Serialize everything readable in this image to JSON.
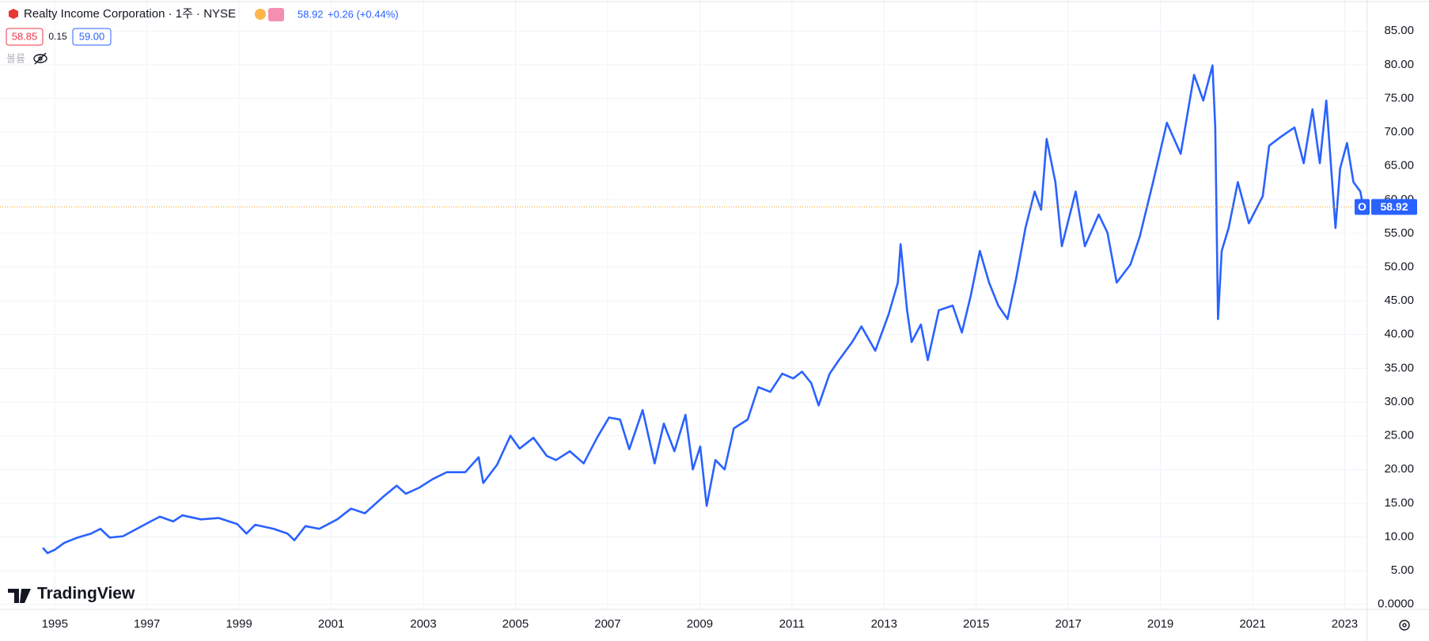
{
  "chart_data": {
    "type": "line",
    "symbol_title": "Realty Income Corporation · 1주 · NYSE",
    "last_price": 58.92,
    "change": "+0.26 (+0.44%)",
    "bid": "58.85",
    "spread": "0.15",
    "ask": "59.00",
    "volume_label": "볼륨",
    "ticker": "O",
    "watermark": "TradingView",
    "grid": true,
    "price_line_color": "#f7a21b",
    "x": [
      1994.74,
      1994.84,
      1995.0,
      1995.2,
      1995.49,
      1995.79,
      1995.99,
      1996.19,
      1996.48,
      1996.78,
      1997.08,
      1997.28,
      1997.57,
      1997.77,
      1998.17,
      1998.56,
      1998.96,
      1999.16,
      1999.35,
      1999.75,
      2000.05,
      2000.2,
      2000.44,
      2000.74,
      2001.13,
      2001.43,
      2001.73,
      2002.12,
      2002.42,
      2002.62,
      2002.91,
      2003.21,
      2003.51,
      2003.91,
      2004.2,
      2004.3,
      2004.6,
      2004.89,
      2005.09,
      2005.39,
      2005.68,
      2005.88,
      2006.18,
      2006.48,
      2006.77,
      2007.03,
      2007.27,
      2007.47,
      2007.76,
      2008.02,
      2008.22,
      2008.45,
      2008.69,
      2008.85,
      2009.01,
      2009.15,
      2009.34,
      2009.54,
      2009.74,
      2010.04,
      2010.27,
      2010.53,
      2010.79,
      2011.03,
      2011.22,
      2011.42,
      2011.58,
      2011.82,
      2012.02,
      2012.31,
      2012.51,
      2012.81,
      2013.1,
      2013.3,
      2013.36,
      2013.5,
      2013.6,
      2013.8,
      2013.95,
      2014.19,
      2014.49,
      2014.69,
      2014.88,
      2015.08,
      2015.28,
      2015.48,
      2015.68,
      2015.87,
      2016.07,
      2016.27,
      2016.41,
      2016.53,
      2016.72,
      2016.86,
      2017.16,
      2017.36,
      2017.66,
      2017.85,
      2018.05,
      2018.35,
      2018.55,
      2018.84,
      2019.14,
      2019.44,
      2019.73,
      2019.93,
      2020.13,
      2020.19,
      2020.25,
      2020.33,
      2020.48,
      2020.68,
      2020.92,
      2021.22,
      2021.36,
      2021.61,
      2021.91,
      2022.11,
      2022.3,
      2022.46,
      2022.6,
      2022.8,
      2022.9,
      2023.05,
      2023.19,
      2023.34,
      2023.4
    ],
    "series": [
      {
        "name": "O",
        "color": "#2962ff",
        "values": [
          8.4,
          7.6,
          8.1,
          9.1,
          9.9,
          10.5,
          11.2,
          9.9,
          10.1,
          11.2,
          12.3,
          13,
          12.3,
          13.2,
          12.6,
          12.8,
          11.9,
          10.5,
          11.8,
          11.2,
          10.5,
          9.5,
          11.6,
          11.2,
          12.6,
          14.2,
          13.5,
          15.9,
          17.6,
          16.4,
          17.3,
          18.6,
          19.6,
          19.6,
          21.8,
          18,
          20.7,
          25,
          23.1,
          24.7,
          22,
          21.4,
          22.7,
          20.9,
          24.7,
          27.7,
          27.4,
          23,
          28.8,
          20.9,
          26.8,
          22.7,
          28.1,
          20,
          23.4,
          14.6,
          21.4,
          20,
          26.1,
          27.4,
          32.2,
          31.5,
          34.2,
          33.5,
          34.5,
          32.8,
          29.5,
          34.2,
          36.2,
          38.9,
          41.2,
          37.6,
          43,
          47.7,
          53.4,
          43.6,
          38.9,
          41.5,
          36.2,
          43.6,
          44.3,
          40.3,
          45.7,
          52.4,
          47.7,
          44.3,
          42.3,
          48.4,
          55.8,
          61.2,
          58.5,
          69,
          62.6,
          53.1,
          61.2,
          53.1,
          57.8,
          55.1,
          47.7,
          50.4,
          54.5,
          62.6,
          71.4,
          66.8,
          78.5,
          74.7,
          79.9,
          70.7,
          42.3,
          52.4,
          55.8,
          62.6,
          56.5,
          60.5,
          68,
          69.3,
          70.7,
          65.4,
          73.4,
          65.4,
          74.7,
          55.8,
          64.6,
          68.4,
          62.6,
          61.2,
          58.9
        ]
      }
    ],
    "xlim": [
      1993.81,
      2023.49
    ],
    "xticks": [
      1995,
      1997,
      1999,
      2001,
      2003,
      2005,
      2007,
      2009,
      2011,
      2013,
      2015,
      2017,
      2019,
      2021,
      2023
    ],
    "ylim": [
      -0.68,
      89.6
    ],
    "yticks": [
      {
        "value": 0,
        "label": "0.0000"
      },
      {
        "value": 5,
        "label": "5.00"
      },
      {
        "value": 10,
        "label": "10.00"
      },
      {
        "value": 15,
        "label": "15.00"
      },
      {
        "value": 20,
        "label": "20.00"
      },
      {
        "value": 25,
        "label": "25.00"
      },
      {
        "value": 30,
        "label": "30.00"
      },
      {
        "value": 35,
        "label": "35.00"
      },
      {
        "value": 40,
        "label": "40.00"
      },
      {
        "value": 45,
        "label": "45.00"
      },
      {
        "value": 50,
        "label": "50.00"
      },
      {
        "value": 55,
        "label": "55.00"
      },
      {
        "value": 60,
        "label": "60.00"
      },
      {
        "value": 65,
        "label": "65.00"
      },
      {
        "value": 70,
        "label": "70.00"
      },
      {
        "value": 75,
        "label": "75.00"
      },
      {
        "value": 80,
        "label": "80.00"
      },
      {
        "value": 85,
        "label": "85.00"
      }
    ]
  }
}
